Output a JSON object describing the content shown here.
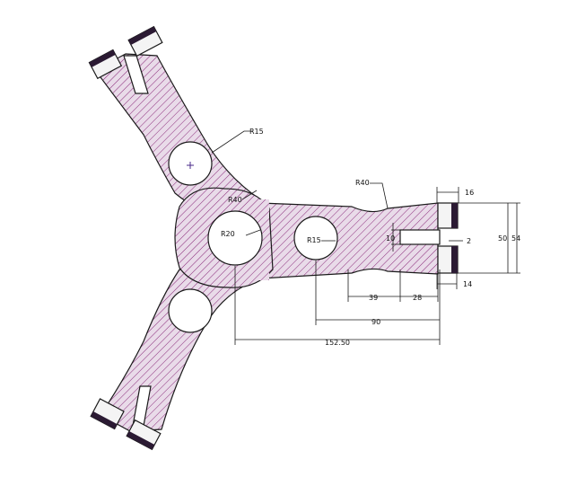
{
  "colors": {
    "background": "#ffffff",
    "hatch_fill": "#e9dbe9",
    "hatch_line": "#8a2a7a",
    "outline": "#1a1a1a",
    "clamp_dark": "#2b1a33"
  },
  "labels": {
    "r15_arm": "R15",
    "r40_center": "R40",
    "r20": "R20",
    "r15_hole": "R15",
    "r40_neck": "R40"
  },
  "dimensions": {
    "d16": "16",
    "d10": "10",
    "d2": "2",
    "d50": "50",
    "d54": "54",
    "d14": "14",
    "d39": "39",
    "d28": "28",
    "d90": "90",
    "d152": "152.50"
  }
}
